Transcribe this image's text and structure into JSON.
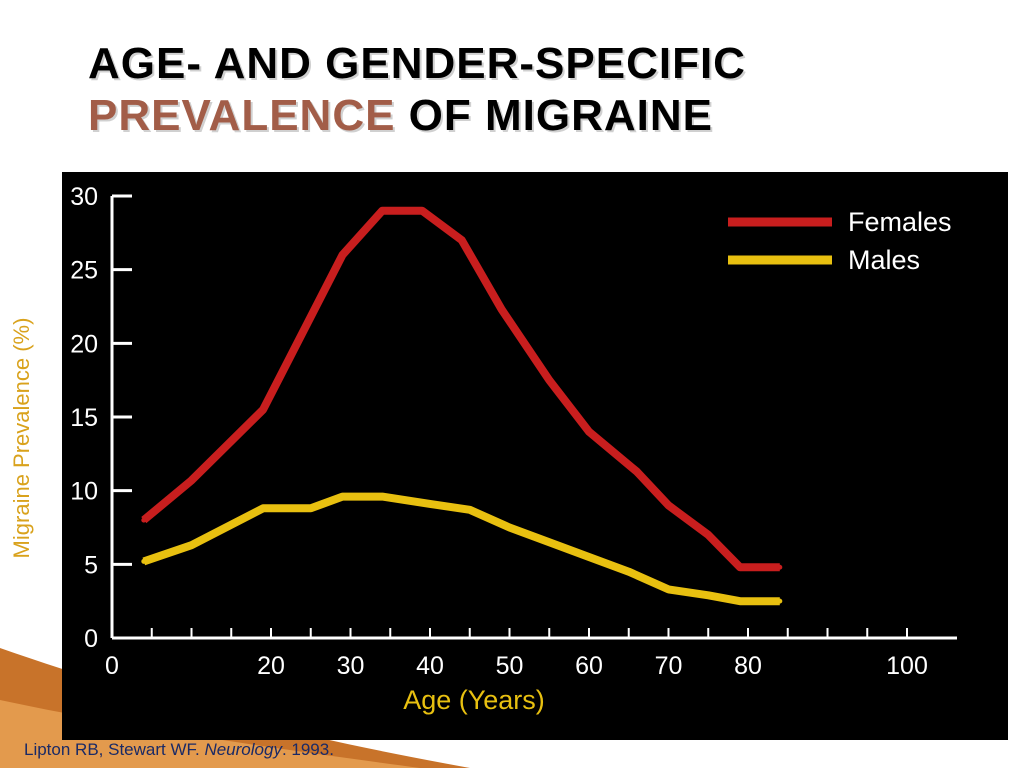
{
  "slide": {
    "title_line1": "AGE- AND GENDER-SPECIFIC",
    "title_accent": "PREVALENCE",
    "title_line2_rest": " OF MIGRAINE",
    "side_ylabel": "Migraine Prevalence (%)",
    "citation_authors": "Lipton RB, Stewart WF. ",
    "citation_journal": "Neurology",
    "citation_year": ". 1993."
  },
  "colors": {
    "title_text": "#000000",
    "title_accent": "#a25d48",
    "chart_background": "#000000",
    "females_line": "#c81e1e",
    "males_line": "#e8c010",
    "axis_text": "#ffffff",
    "xlabel_text": "#e8c010",
    "side_ylabel": "#d9a21c",
    "decoration": "#c8732a"
  },
  "chart_data": {
    "type": "line",
    "title": "",
    "xlabel": "Age (Years)",
    "ylabel": "",
    "xlim": [
      0,
      100
    ],
    "ylim": [
      0,
      30
    ],
    "x_ticks": [
      0,
      20,
      30,
      40,
      50,
      60,
      70,
      80,
      100
    ],
    "y_ticks": [
      0,
      5,
      10,
      15,
      20,
      25,
      30
    ],
    "grid": false,
    "legend_position": "top-right",
    "series": [
      {
        "name": "Females",
        "color": "#c81e1e",
        "x": [
          4,
          10,
          19,
          29,
          34,
          39,
          44,
          49,
          55,
          60,
          66,
          70,
          75,
          79,
          84
        ],
        "y": [
          8,
          10.7,
          15.5,
          26,
          29,
          29,
          27,
          22.3,
          17.5,
          14,
          11.3,
          9,
          7,
          4.8,
          4.8
        ]
      },
      {
        "name": "Males",
        "color": "#e8c010",
        "x": [
          4,
          10,
          19,
          25,
          29,
          34,
          40,
          45,
          50,
          55,
          60,
          65,
          70,
          75,
          79,
          84
        ],
        "y": [
          5.2,
          6.3,
          8.8,
          8.8,
          9.6,
          9.6,
          9.1,
          8.7,
          7.5,
          6.5,
          5.5,
          4.5,
          3.3,
          2.9,
          2.5,
          2.5
        ]
      }
    ]
  }
}
